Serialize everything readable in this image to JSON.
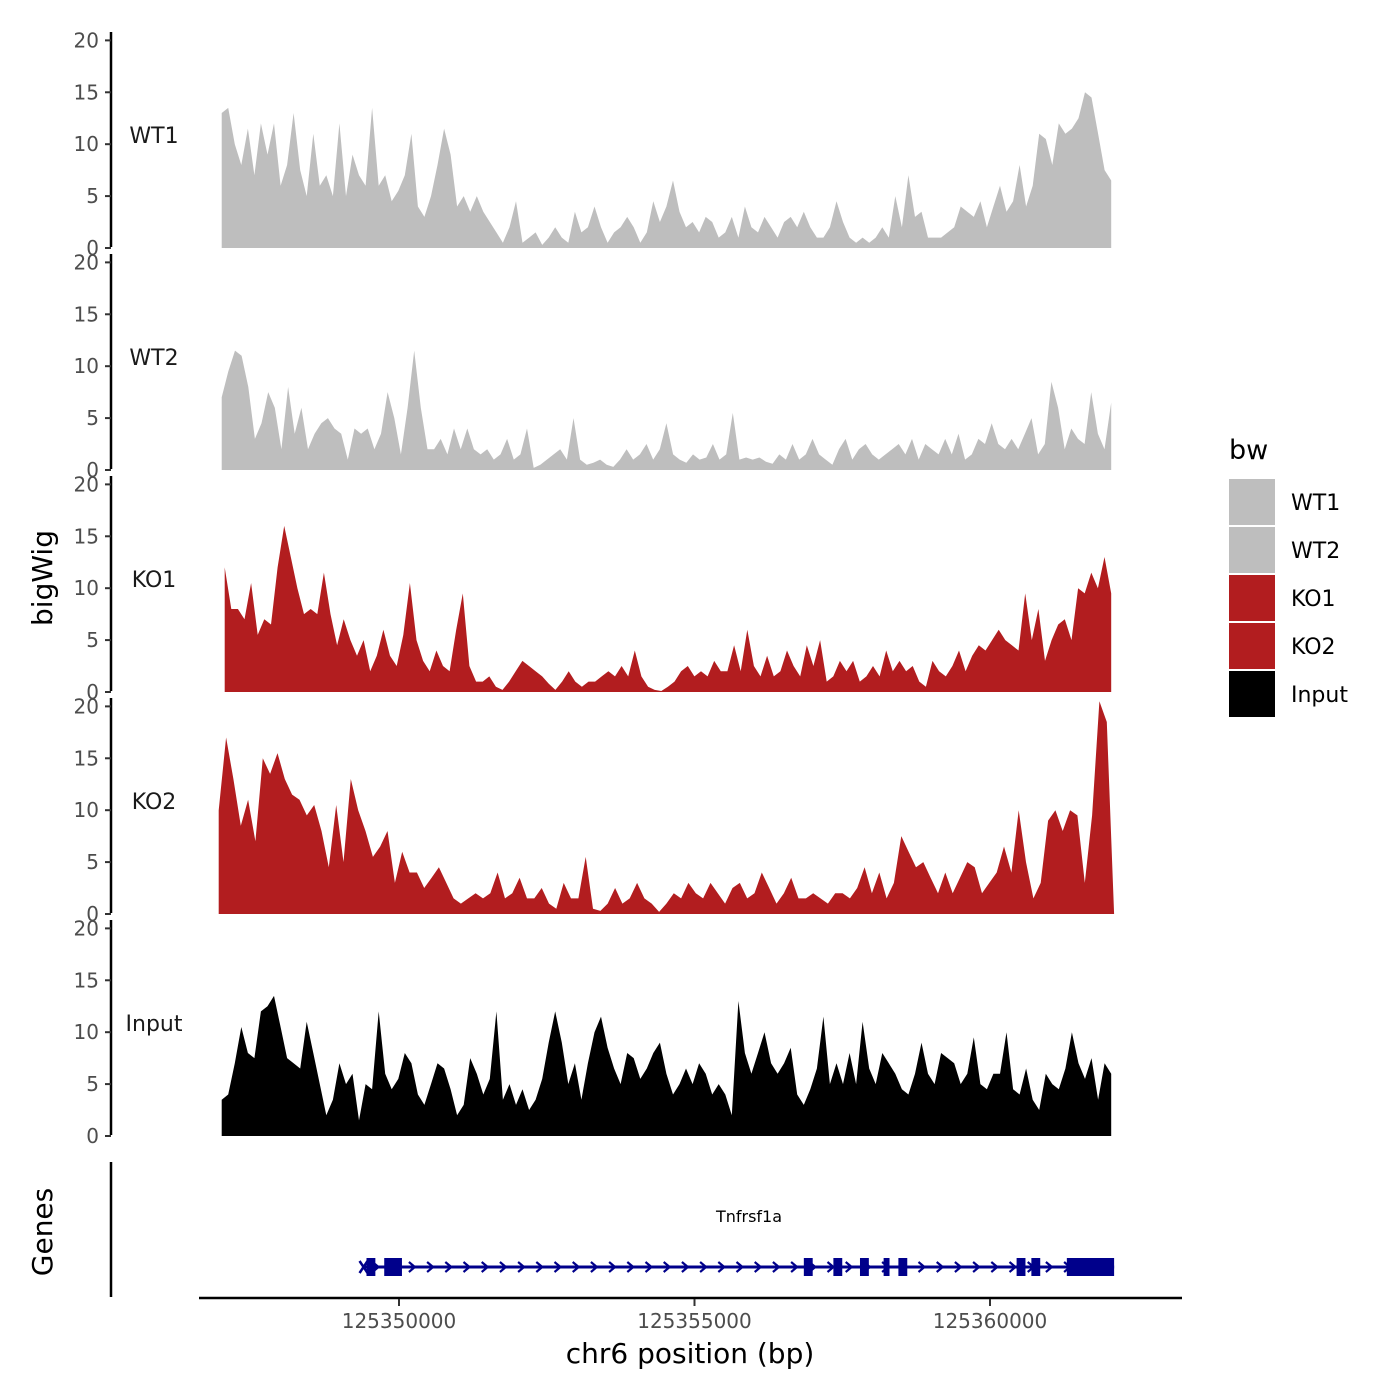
{
  "chart_data": {
    "type": "area",
    "chromosome": "chr6",
    "x_range": [
      125346700,
      125363300
    ],
    "y_range": [
      0,
      21
    ],
    "y_ticks": [
      0,
      5,
      10,
      15,
      20
    ],
    "x_ticks": [
      125350000,
      125355000,
      125360000
    ],
    "x_tick_labels": [
      "125350000",
      "125355000",
      "125360000"
    ],
    "xlabel": "chr6 position (bp)",
    "ylabel": "bigWig",
    "genes_label": "Genes",
    "legend": {
      "title": "bw",
      "entries": [
        {
          "label": "WT1",
          "color": "#bebebe"
        },
        {
          "label": "WT2",
          "color": "#bebebe"
        },
        {
          "label": "KO1",
          "color": "#b21d1f"
        },
        {
          "label": "KO2",
          "color": "#b21d1f"
        },
        {
          "label": "Input",
          "color": "#000000"
        }
      ]
    },
    "series": [
      {
        "name": "WT1",
        "color": "#bebebe",
        "x_start": 125347000,
        "x_end": 125362050,
        "values": [
          13,
          13.5,
          10,
          8,
          11.5,
          7,
          12,
          9,
          12,
          6,
          8,
          13,
          7.5,
          5,
          11,
          6,
          7,
          5,
          12,
          5,
          9,
          7,
          6,
          13.5,
          6,
          7,
          4.5,
          5.5,
          7,
          11,
          4,
          3,
          5,
          8,
          11.5,
          9,
          4,
          5,
          3.5,
          5,
          3.5,
          2.5,
          1.5,
          0.5,
          2,
          4.5,
          0.5,
          1,
          1.5,
          0.3,
          1,
          2,
          1,
          0.5,
          3.5,
          1.5,
          2,
          4,
          2,
          0.5,
          1.5,
          2,
          3,
          2,
          0.5,
          1.5,
          4.5,
          2.5,
          4,
          6.5,
          3.5,
          2,
          2.5,
          1.5,
          3,
          2.5,
          1,
          1.5,
          3,
          1,
          4,
          2,
          1.5,
          3,
          2,
          1,
          2.5,
          3,
          2,
          3.5,
          2,
          1,
          1,
          2,
          4.5,
          2.5,
          1,
          0.5,
          1,
          0.5,
          1,
          2,
          1,
          5,
          2,
          7,
          3,
          3.5,
          1,
          1,
          1,
          1.5,
          2,
          4,
          3.5,
          3,
          4.5,
          2,
          4,
          6,
          3.5,
          4.5,
          8,
          4,
          6,
          11,
          10.5,
          8,
          12,
          11,
          11.5,
          12.5,
          15,
          14.5,
          11,
          7.5,
          6.5
        ]
      },
      {
        "name": "WT2",
        "color": "#bebebe",
        "x_start": 125347000,
        "x_end": 125362050,
        "values": [
          7,
          9.5,
          11.5,
          11,
          8,
          3,
          4.5,
          7.5,
          6,
          2,
          8,
          3.5,
          6,
          2,
          3.5,
          4.5,
          5,
          4,
          3.5,
          1,
          4,
          3.5,
          4,
          2,
          3.5,
          7.5,
          5,
          1.5,
          6,
          11.5,
          6,
          2,
          2,
          3,
          1.5,
          4,
          2,
          4,
          2,
          1.5,
          2,
          1,
          1.5,
          3,
          1,
          1.5,
          4,
          0.2,
          0.5,
          1,
          1.5,
          2,
          1,
          5,
          1,
          0.5,
          0.7,
          1,
          0.5,
          0.3,
          1,
          2,
          1,
          1.5,
          2.5,
          1,
          2,
          4.5,
          1.5,
          1,
          0.7,
          1.5,
          1,
          1.2,
          2.5,
          1,
          1.5,
          5.5,
          1,
          1.2,
          1,
          1.2,
          0.8,
          0.6,
          1.5,
          1,
          2.5,
          1,
          1.5,
          3,
          1.5,
          1,
          0.5,
          2,
          3,
          1,
          2,
          2.5,
          1.5,
          1,
          1.5,
          2,
          2.5,
          1.5,
          3,
          1,
          2.5,
          2,
          1.5,
          3,
          1.5,
          3.5,
          1,
          1.5,
          3,
          2.5,
          4.5,
          2.5,
          2,
          3,
          2,
          3.5,
          5,
          1.5,
          2.5,
          8.5,
          6,
          2,
          4,
          3,
          2.5,
          7.5,
          3.5,
          2,
          6.5
        ]
      },
      {
        "name": "KO1",
        "color": "#b21d1f",
        "x_start": 125347050,
        "x_end": 125362050,
        "values": [
          12,
          8,
          8,
          7,
          10.5,
          5.5,
          7,
          6.5,
          12,
          16,
          13,
          10,
          7.5,
          8,
          7.5,
          11.5,
          7.5,
          4.5,
          7,
          5,
          3.5,
          5,
          2,
          3.5,
          6,
          3.5,
          2.5,
          5.5,
          10.5,
          5,
          3,
          2,
          4,
          2.5,
          2,
          6,
          9.5,
          2.5,
          1,
          1,
          1.5,
          0.5,
          0.2,
          1,
          2,
          3,
          2.5,
          2,
          1.5,
          0.8,
          0.2,
          1,
          2,
          1,
          0.5,
          1,
          1,
          1.5,
          2,
          1.5,
          2.5,
          1.5,
          4,
          1.5,
          0.5,
          0.2,
          0.1,
          0.5,
          1,
          2,
          2.5,
          1.5,
          2,
          1.5,
          3,
          2,
          2,
          4.5,
          2,
          6,
          2.5,
          1.5,
          3.5,
          1.5,
          2,
          4,
          2.5,
          1.5,
          4.5,
          2.5,
          5,
          1,
          1.5,
          3,
          2,
          3,
          1,
          1.5,
          2.5,
          1.5,
          4,
          2,
          3,
          2,
          2.5,
          1,
          0.5,
          3,
          2,
          1.5,
          2.5,
          4,
          2,
          3.5,
          4.5,
          4,
          5,
          6,
          5,
          4.5,
          4,
          9.5,
          5,
          8,
          3,
          5,
          6.5,
          7,
          5,
          10,
          9.5,
          11.5,
          10,
          13,
          9.5
        ]
      },
      {
        "name": "KO2",
        "color": "#b21d1f",
        "x_start": 125346950,
        "x_end": 125362100,
        "values": [
          10,
          17,
          13,
          8.5,
          11,
          7,
          15,
          13.5,
          15.5,
          13,
          11.5,
          11,
          9.5,
          10.5,
          8,
          4.5,
          10.5,
          5,
          13,
          10,
          8,
          5.5,
          6.5,
          8,
          3,
          6,
          4,
          4,
          2.5,
          3.5,
          4.5,
          3,
          1.5,
          1,
          1.5,
          2,
          1.5,
          2,
          4,
          1.5,
          2,
          3.5,
          1.5,
          1.5,
          2.5,
          1,
          0.5,
          3,
          1.5,
          1.5,
          5.5,
          0.5,
          0.3,
          1,
          2.5,
          1,
          1.5,
          3,
          1.5,
          1,
          0.2,
          1,
          2,
          1.5,
          3,
          2,
          1.5,
          3,
          2,
          1,
          2.5,
          3,
          1.5,
          2,
          4,
          2.5,
          1,
          2,
          3.5,
          1.5,
          1.5,
          2,
          1.5,
          1,
          2,
          2,
          1.5,
          2.5,
          4.5,
          2,
          4,
          1.5,
          3,
          7.5,
          6,
          4.5,
          5,
          3.5,
          2,
          4,
          2,
          3.5,
          5,
          4.5,
          2,
          3,
          4,
          6.5,
          4,
          10,
          5,
          1.5,
          3,
          9,
          10,
          8,
          10,
          9.5,
          3,
          9.5,
          20.5,
          18.5,
          0
        ]
      },
      {
        "name": "Input",
        "color": "#000000",
        "x_start": 125347000,
        "x_end": 125362050,
        "values": [
          3.5,
          4,
          7,
          10.5,
          8,
          7.5,
          12,
          12.5,
          13.5,
          10.5,
          7.5,
          7,
          6.5,
          11,
          8,
          5,
          2,
          3.5,
          7,
          5,
          6,
          1.5,
          5,
          4.5,
          12,
          6,
          4.5,
          5.5,
          8,
          7,
          4,
          3,
          5,
          7,
          6.5,
          4.5,
          2,
          3,
          7.5,
          6,
          4,
          5.5,
          12,
          3.5,
          5,
          3,
          4.5,
          2.5,
          3.5,
          5.5,
          9,
          12,
          9,
          5,
          7,
          3.5,
          7,
          10,
          11.5,
          8.5,
          6.5,
          5,
          8,
          7.5,
          5.5,
          6.5,
          8,
          9,
          6,
          4,
          5,
          6.5,
          5,
          7,
          6,
          4,
          5,
          4,
          2,
          13,
          8,
          6,
          8,
          10,
          7,
          6,
          7,
          8.5,
          4,
          3,
          4.5,
          6.5,
          11.5,
          5,
          7,
          5,
          8,
          5,
          11,
          6.5,
          5,
          8,
          7,
          6,
          4.5,
          4,
          6,
          9,
          6,
          5,
          8,
          7.5,
          7,
          5,
          6,
          9.5,
          5,
          4.5,
          6,
          6,
          10,
          4.5,
          4,
          6.5,
          3.5,
          2.5,
          6,
          5,
          4.5,
          6.5,
          10,
          7,
          5.5,
          7.5,
          3.5,
          7,
          6
        ]
      }
    ],
    "gene": {
      "name": "Tnfrsf1a",
      "start": 125349400,
      "end": 125362100,
      "strand": "+",
      "exons": [
        [
          125349450,
          125349600
        ],
        [
          125349750,
          125350050
        ],
        [
          125356850,
          125357000
        ],
        [
          125357350,
          125357500
        ],
        [
          125357800,
          125357950
        ],
        [
          125358200,
          125358300
        ],
        [
          125358450,
          125358600
        ],
        [
          125360450,
          125360600
        ],
        [
          125360700,
          125360850
        ],
        [
          125361300,
          125362100
        ]
      ]
    }
  }
}
